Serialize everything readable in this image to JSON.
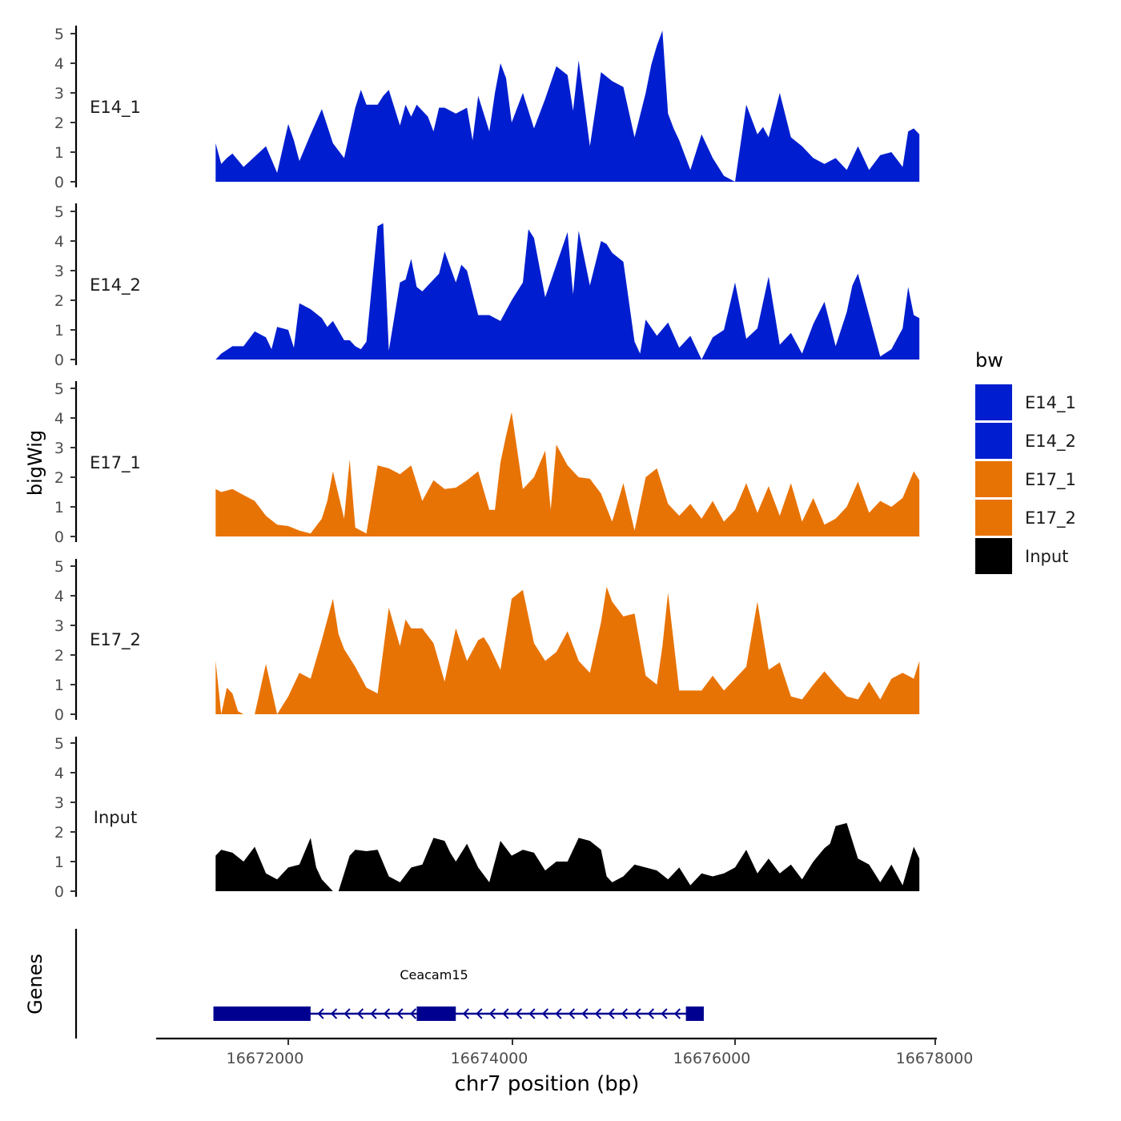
{
  "chart_data": {
    "type": "area",
    "title": "",
    "ylabel": "bigWig",
    "genes_label": "Genes",
    "xlabel": "chr7 position (bp)",
    "xlim": [
      16671000,
      16678000
    ],
    "xticks": [
      16672000,
      16674000,
      16676000,
      16678000
    ],
    "xtick_labels": [
      "16672000",
      "16674000",
      "16676000",
      "16678000"
    ],
    "ylim": [
      0,
      5.3
    ],
    "yticks": [
      0,
      1,
      2,
      3,
      4,
      5
    ],
    "ytick_labels": [
      "0",
      "1",
      "2",
      "3",
      "4",
      "5"
    ],
    "legend": {
      "title": "bw",
      "placement": "right",
      "entries": [
        {
          "label": "E14_1",
          "color": "#001ECF"
        },
        {
          "label": "E14_2",
          "color": "#001ECF"
        },
        {
          "label": "E17_1",
          "color": "#E87305"
        },
        {
          "label": "E17_2",
          "color": "#E87305"
        },
        {
          "label": "Input",
          "color": "#000000"
        }
      ]
    },
    "series": [
      {
        "name": "E14_1",
        "color": "#001ECF",
        "x": [
          16671350,
          16671400,
          16671450,
          16671500,
          16671600,
          16671700,
          16671800,
          16671900,
          16672000,
          16672050,
          16672100,
          16672200,
          16672300,
          16672400,
          16672500,
          16672600,
          16672650,
          16672700,
          16672800,
          16672850,
          16672900,
          16673000,
          16673050,
          16673100,
          16673150,
          16673200,
          16673250,
          16673300,
          16673350,
          16673400,
          16673500,
          16673600,
          16673650,
          16673700,
          16673800,
          16673850,
          16673900,
          16673950,
          16674000,
          16674100,
          16674200,
          16674300,
          16674400,
          16674500,
          16674550,
          16674600,
          16674700,
          16674800,
          16674900,
          16675000,
          16675100,
          16675200,
          16675250,
          16675300,
          16675350,
          16675400,
          16675450,
          16675500,
          16675600,
          16675700,
          16675800,
          16675900,
          16676000,
          16676100,
          16676200,
          16676250,
          16676300,
          16676400,
          16676500,
          16676600,
          16676700,
          16676800,
          16676900,
          16677000,
          16677100,
          16677200,
          16677300,
          16677400,
          16677500,
          16677550,
          16677600,
          16677650
        ],
        "values": [
          1.3,
          0.6,
          0.8,
          0.95,
          0.5,
          0.85,
          1.2,
          0.3,
          1.95,
          1.4,
          0.7,
          1.6,
          2.45,
          1.3,
          0.8,
          2.5,
          3.1,
          2.6,
          2.6,
          2.9,
          3.1,
          1.9,
          2.6,
          2.2,
          2.6,
          2.4,
          2.2,
          1.7,
          2.5,
          2.5,
          2.3,
          2.5,
          1.4,
          2.9,
          1.7,
          3.0,
          4.0,
          3.5,
          2.0,
          3.0,
          1.8,
          2.8,
          3.9,
          3.6,
          2.4,
          4.1,
          1.2,
          3.7,
          3.4,
          3.2,
          1.5,
          3.0,
          3.95,
          4.6,
          5.1,
          2.3,
          1.8,
          1.4,
          0.4,
          1.6,
          0.8,
          0.2,
          0.0,
          2.6,
          1.6,
          1.85,
          1.5,
          3.0,
          1.5,
          1.2,
          0.8,
          0.6,
          0.8,
          0.4,
          1.2,
          0.4,
          0.9,
          1.0,
          0.5,
          1.7,
          1.8,
          1.6
        ]
      },
      {
        "name": "E14_2",
        "color": "#001ECF",
        "x": [
          16671350,
          16671400,
          16671500,
          16671600,
          16671700,
          16671800,
          16671850,
          16671900,
          16672000,
          16672050,
          16672100,
          16672200,
          16672300,
          16672350,
          16672400,
          16672500,
          16672550,
          16672600,
          16672650,
          16672700,
          16672800,
          16672850,
          16672900,
          16673000,
          16673050,
          16673100,
          16673150,
          16673200,
          16673300,
          16673350,
          16673400,
          16673500,
          16673550,
          16673600,
          16673700,
          16673800,
          16673900,
          16674000,
          16674100,
          16674150,
          16674200,
          16674300,
          16674400,
          16674500,
          16674550,
          16674600,
          16674700,
          16674800,
          16674850,
          16674900,
          16675000,
          16675100,
          16675150,
          16675200,
          16675300,
          16675400,
          16675500,
          16675600,
          16675700,
          16675800,
          16675900,
          16676000,
          16676100,
          16676200,
          16676300,
          16676400,
          16676500,
          16676600,
          16676700,
          16676800,
          16676900,
          16677000,
          16677050,
          16677100,
          16677200,
          16677300,
          16677400,
          16677500,
          16677550,
          16677600,
          16677650
        ],
        "values": [
          0.0,
          0.2,
          0.45,
          0.45,
          0.95,
          0.75,
          0.35,
          1.1,
          1.0,
          0.4,
          1.9,
          1.7,
          1.4,
          1.1,
          1.3,
          0.65,
          0.65,
          0.45,
          0.35,
          0.6,
          4.5,
          4.6,
          0.3,
          2.6,
          2.7,
          3.4,
          2.45,
          2.3,
          2.7,
          2.9,
          3.65,
          2.6,
          3.2,
          3.0,
          1.5,
          1.5,
          1.3,
          2.0,
          2.6,
          4.4,
          4.1,
          2.1,
          3.2,
          4.3,
          2.2,
          4.35,
          2.5,
          4.0,
          3.9,
          3.6,
          3.3,
          0.6,
          0.2,
          1.35,
          0.8,
          1.25,
          0.4,
          0.8,
          0.0,
          0.75,
          1.0,
          2.6,
          0.7,
          1.05,
          2.8,
          0.5,
          0.9,
          0.2,
          1.2,
          1.95,
          0.45,
          1.6,
          2.5,
          2.9,
          1.5,
          0.1,
          0.35,
          1.05,
          2.45,
          1.5,
          1.4
        ]
      },
      {
        "name": "E17_1",
        "color": "#E87305",
        "x": [
          16671350,
          16671400,
          16671500,
          16671600,
          16671700,
          16671800,
          16671900,
          16672000,
          16672100,
          16672200,
          16672300,
          16672350,
          16672400,
          16672500,
          16672550,
          16672600,
          16672700,
          16672800,
          16672900,
          16673000,
          16673100,
          16673200,
          16673300,
          16673400,
          16673500,
          16673600,
          16673700,
          16673800,
          16673850,
          16673900,
          16673950,
          16674000,
          16674100,
          16674200,
          16674300,
          16674350,
          16674400,
          16674500,
          16674600,
          16674700,
          16674800,
          16674900,
          16675000,
          16675100,
          16675200,
          16675300,
          16675400,
          16675500,
          16675600,
          16675700,
          16675800,
          16675900,
          16676000,
          16676100,
          16676200,
          16676300,
          16676400,
          16676500,
          16676600,
          16676700,
          16676800,
          16676900,
          16677000,
          16677100,
          16677200,
          16677300,
          16677400,
          16677500,
          16677600,
          16677650
        ],
        "values": [
          1.6,
          1.5,
          1.6,
          1.4,
          1.2,
          0.7,
          0.4,
          0.35,
          0.2,
          0.1,
          0.6,
          1.2,
          2.2,
          0.6,
          2.6,
          0.3,
          0.1,
          2.4,
          2.3,
          2.1,
          2.4,
          1.2,
          1.9,
          1.6,
          1.65,
          1.9,
          2.2,
          0.9,
          0.9,
          2.5,
          3.4,
          4.2,
          1.6,
          2.0,
          2.9,
          0.9,
          3.1,
          2.4,
          2.0,
          1.95,
          1.45,
          0.5,
          1.8,
          0.2,
          2.0,
          2.3,
          1.1,
          0.7,
          1.1,
          0.6,
          1.2,
          0.5,
          0.9,
          1.8,
          0.8,
          1.7,
          0.7,
          1.8,
          0.5,
          1.3,
          0.4,
          0.6,
          1.0,
          1.85,
          0.8,
          1.2,
          1.0,
          1.3,
          2.2,
          1.9
        ]
      },
      {
        "name": "E17_2",
        "color": "#E87305",
        "x": [
          16671350,
          16671400,
          16671450,
          16671500,
          16671550,
          16671600,
          16671650,
          16671700,
          16671800,
          16671900,
          16672000,
          16672100,
          16672200,
          16672300,
          16672400,
          16672450,
          16672500,
          16672600,
          16672700,
          16672800,
          16672900,
          16673000,
          16673050,
          16673100,
          16673200,
          16673300,
          16673400,
          16673500,
          16673600,
          16673700,
          16673750,
          16673800,
          16673900,
          16674000,
          16674100,
          16674200,
          16674300,
          16674400,
          16674500,
          16674600,
          16674700,
          16674800,
          16674850,
          16674900,
          16675000,
          16675100,
          16675200,
          16675300,
          16675350,
          16675400,
          16675500,
          16675600,
          16675700,
          16675800,
          16675900,
          16676000,
          16676100,
          16676200,
          16676300,
          16676400,
          16676500,
          16676600,
          16676700,
          16676800,
          16676900,
          16677000,
          16677100,
          16677200,
          16677300,
          16677400,
          16677500,
          16677600,
          16677650
        ],
        "values": [
          1.8,
          0.0,
          0.9,
          0.7,
          0.1,
          0.0,
          0.0,
          0.0,
          1.7,
          0.0,
          0.6,
          1.4,
          1.2,
          2.5,
          3.9,
          2.7,
          2.2,
          1.6,
          0.9,
          0.7,
          3.6,
          2.3,
          3.2,
          2.9,
          2.9,
          2.4,
          1.1,
          2.9,
          1.8,
          2.5,
          2.6,
          2.3,
          1.5,
          3.9,
          4.2,
          2.4,
          1.8,
          2.1,
          2.8,
          1.8,
          1.4,
          3.1,
          4.3,
          3.8,
          3.3,
          3.4,
          1.3,
          1.0,
          2.3,
          4.1,
          0.8,
          0.8,
          0.8,
          1.3,
          0.8,
          1.2,
          1.6,
          3.8,
          1.5,
          1.75,
          0.6,
          0.5,
          1.0,
          1.45,
          1.0,
          0.6,
          0.5,
          1.1,
          0.5,
          1.2,
          1.4,
          1.2,
          1.8
        ]
      },
      {
        "name": "Input",
        "color": "#000000",
        "x": [
          16671350,
          16671400,
          16671500,
          16671600,
          16671700,
          16671800,
          16671900,
          16672000,
          16672100,
          16672200,
          16672250,
          16672300,
          16672400,
          16672450,
          16672500,
          16672550,
          16672600,
          16672700,
          16672800,
          16672900,
          16673000,
          16673100,
          16673200,
          16673300,
          16673400,
          16673450,
          16673500,
          16673600,
          16673700,
          16673800,
          16673900,
          16674000,
          16674100,
          16674200,
          16674300,
          16674400,
          16674500,
          16674600,
          16674700,
          16674800,
          16674850,
          16674900,
          16675000,
          16675100,
          16675200,
          16675300,
          16675400,
          16675500,
          16675600,
          16675700,
          16675800,
          16675900,
          16676000,
          16676100,
          16676200,
          16676300,
          16676400,
          16676500,
          16676600,
          16676700,
          16676800,
          16676850,
          16676900,
          16677000,
          16677100,
          16677200,
          16677300,
          16677400,
          16677500,
          16677600,
          16677650
        ],
        "values": [
          1.2,
          1.4,
          1.3,
          1.0,
          1.5,
          0.6,
          0.4,
          0.8,
          0.9,
          1.8,
          0.8,
          0.4,
          0.0,
          0.0,
          0.6,
          1.2,
          1.4,
          1.35,
          1.4,
          0.5,
          0.3,
          0.8,
          0.9,
          1.8,
          1.7,
          1.3,
          1.0,
          1.6,
          0.8,
          0.3,
          1.7,
          1.2,
          1.4,
          1.3,
          0.7,
          1.0,
          1.0,
          1.8,
          1.7,
          1.4,
          0.5,
          0.3,
          0.5,
          0.9,
          0.8,
          0.7,
          0.4,
          0.8,
          0.2,
          0.6,
          0.5,
          0.6,
          0.8,
          1.4,
          0.6,
          1.1,
          0.6,
          0.9,
          0.4,
          1.0,
          1.45,
          1.6,
          2.2,
          2.3,
          1.1,
          0.9,
          0.3,
          0.9,
          0.2,
          1.5,
          1.1
        ]
      }
    ],
    "genes": [
      {
        "name": "Ceacam15",
        "start": 16671330,
        "end": 16675720,
        "strand": "-",
        "color": "#000090",
        "exons": [
          [
            16671330,
            16672200
          ],
          [
            16673150,
            16673500
          ],
          [
            16675560,
            16675720
          ]
        ]
      }
    ]
  }
}
